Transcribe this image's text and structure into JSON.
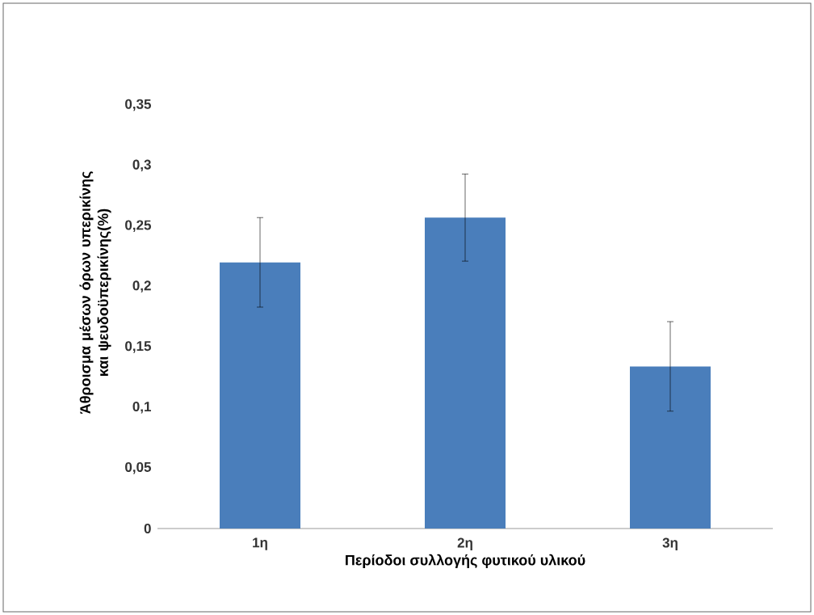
{
  "chart_data": {
    "type": "bar",
    "xlabel": "Περίοδοι συλλογής φυτικού υλικού",
    "ylabel": "Άθροισμα μέσων όρων υπερικίνης και ψευδοϋπερικίνης(%)",
    "categories": [
      "1η",
      "2η",
      "3η"
    ],
    "values": [
      0.22,
      0.257,
      0.134
    ],
    "errors": [
      0.037,
      0.036,
      0.037
    ],
    "color": "#4a7ebb",
    "ylim": [
      0,
      0.35
    ],
    "yticks": [
      {
        "value": 0,
        "label": "0"
      },
      {
        "value": 0.05,
        "label": "0,05"
      },
      {
        "value": 0.1,
        "label": "0,1"
      },
      {
        "value": 0.15,
        "label": "0,15"
      },
      {
        "value": 0.2,
        "label": "0,2"
      },
      {
        "value": 0.25,
        "label": "0,25"
      },
      {
        "value": 0.3,
        "label": "0,3"
      },
      {
        "value": 0.35,
        "label": "0,35"
      }
    ]
  }
}
